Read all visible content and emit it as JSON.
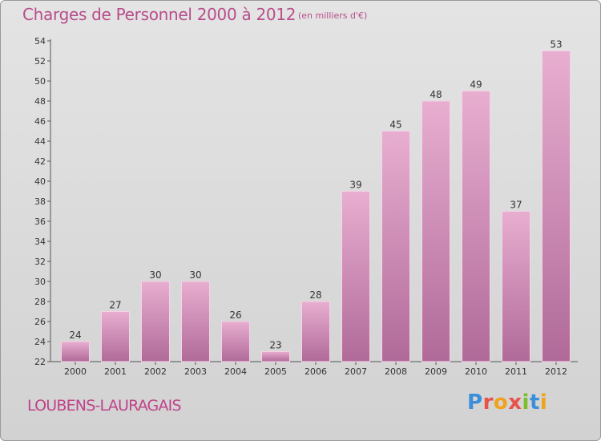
{
  "header": {
    "title": "Charges de Personnel 2000 à 2012",
    "unit": "(en milliers d'€)"
  },
  "footer": {
    "commune": "LOUBENS-LAURAGAIS",
    "logo_letters": [
      "P",
      "r",
      "o",
      "x",
      "i",
      "t",
      "i"
    ],
    "logo_colors": [
      "#3b8fd9",
      "#e8524b",
      "#f0a21a",
      "#e8524b",
      "#7bbd2c",
      "#3b8fd9",
      "#f0a21a"
    ]
  },
  "colors": {
    "bar_top": "#e8aed0",
    "bar_bottom": "#b06a99",
    "bar_stroke": "#f5d3e6",
    "text": "#333333",
    "accent": "#b84d8b"
  },
  "chart_data": {
    "type": "bar",
    "categories": [
      "2000",
      "2001",
      "2002",
      "2003",
      "2004",
      "2005",
      "2006",
      "2007",
      "2008",
      "2009",
      "2010",
      "2011",
      "2012"
    ],
    "values": [
      24,
      27,
      30,
      30,
      26,
      23,
      28,
      39,
      45,
      48,
      49,
      37,
      53
    ],
    "ylim": [
      22,
      54
    ],
    "yticks": [
      22,
      24,
      26,
      28,
      30,
      32,
      34,
      36,
      38,
      40,
      42,
      44,
      46,
      48,
      50,
      52,
      54
    ],
    "grid": false
  }
}
